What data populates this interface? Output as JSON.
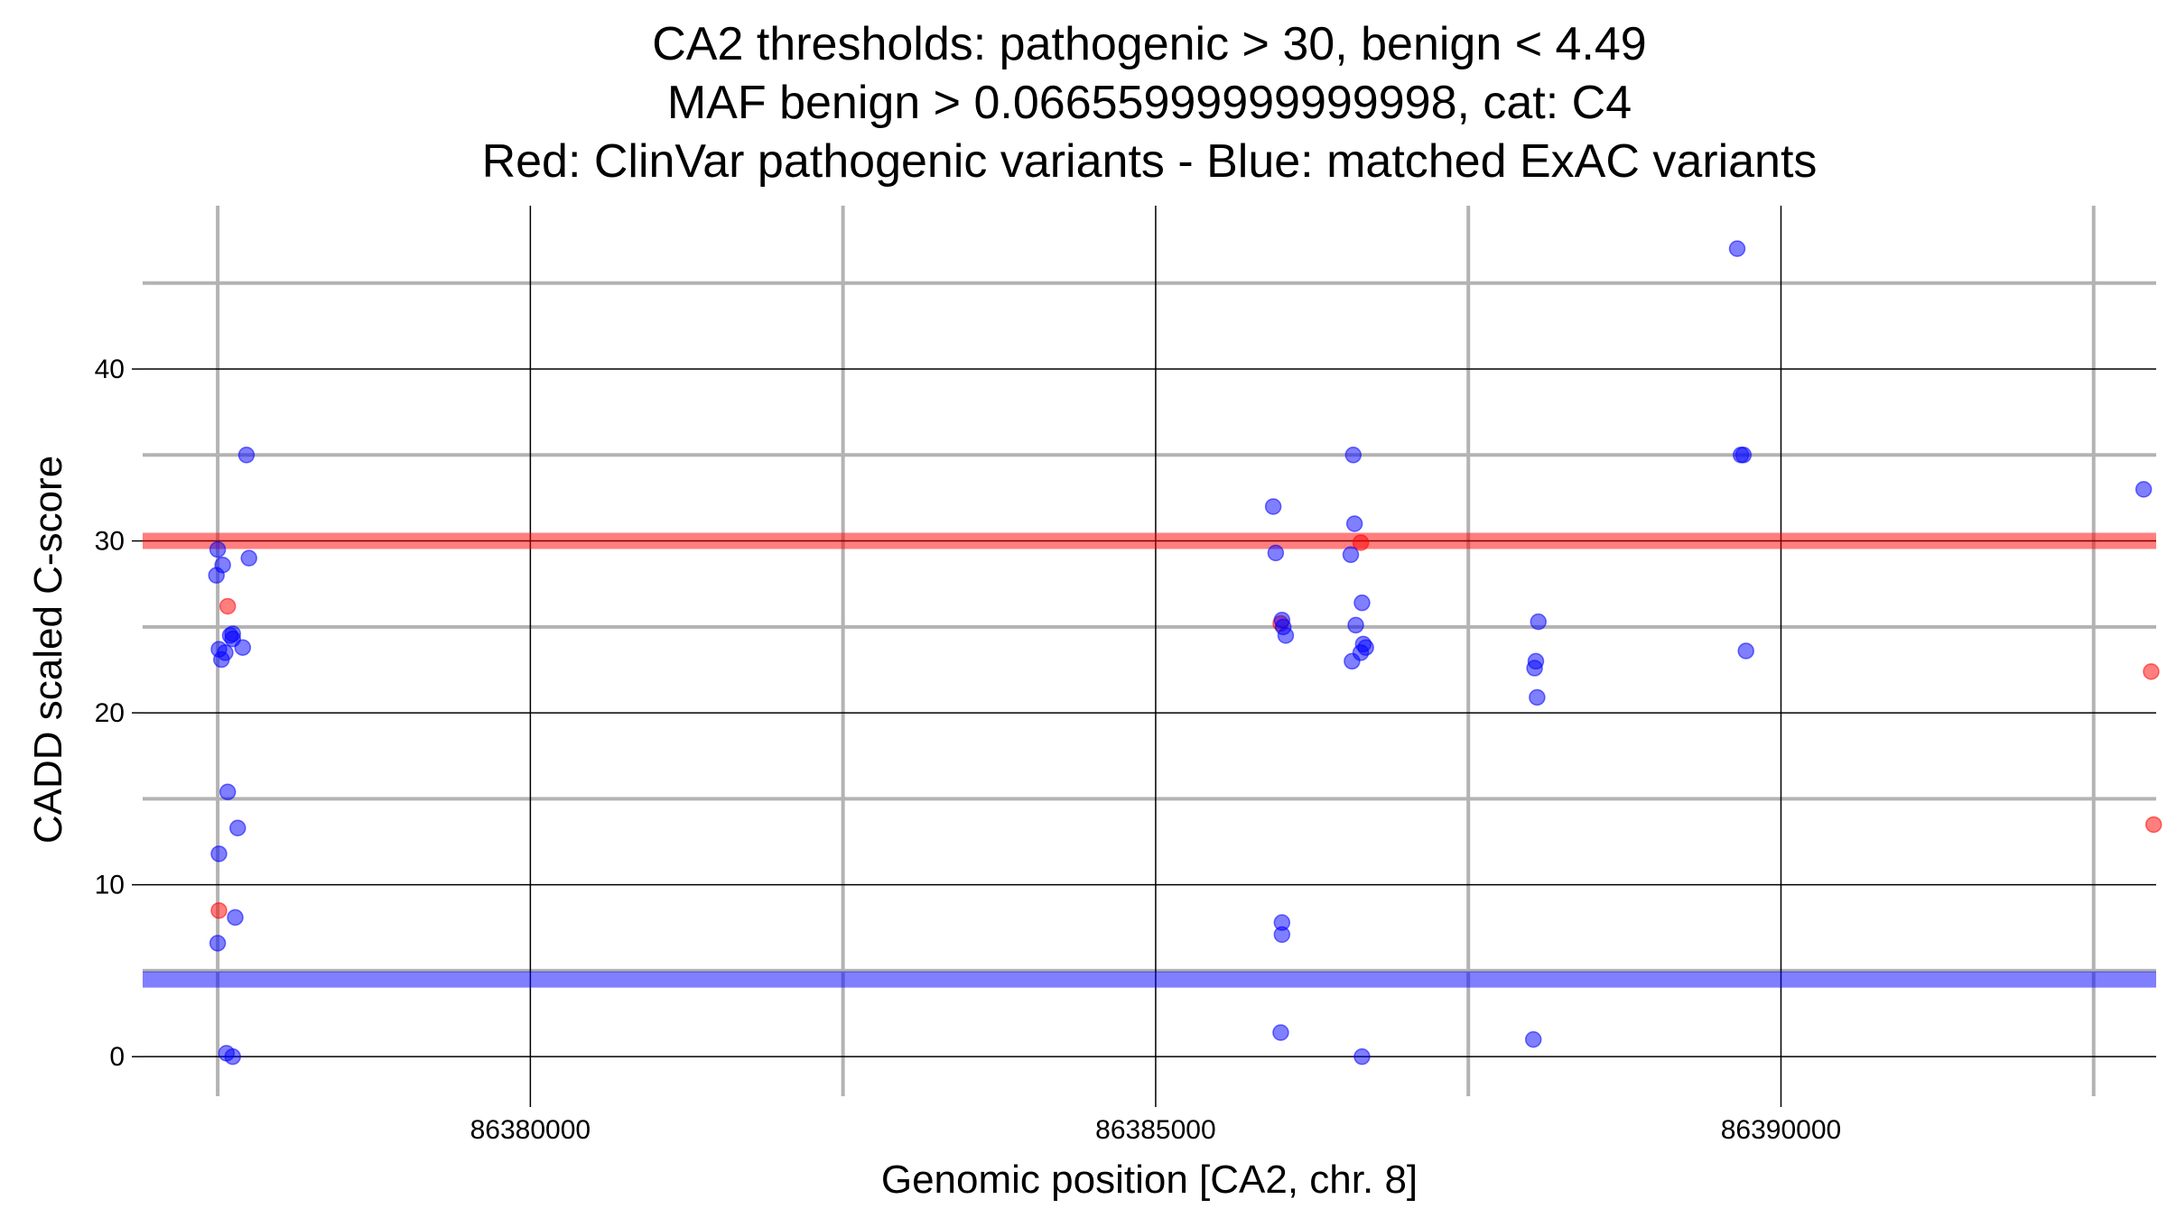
{
  "chart_data": {
    "type": "scatter",
    "title_lines": [
      "CA2 thresholds: pathogenic > 30, benign < 4.49",
      "MAF benign > 0.06655999999999998, cat: C4",
      "Red: ClinVar pathogenic variants - Blue: matched ExAC variants"
    ],
    "xlabel": "Genomic position [CA2, chr. 8]",
    "ylabel": "CADD scaled C-score",
    "xlim": [
      86376900,
      86393000
    ],
    "ylim": [
      -2.3,
      49.5
    ],
    "x_ticks": [
      86380000,
      86385000,
      86390000
    ],
    "x_tick_labels": [
      "86380000",
      "86385000",
      "86390000"
    ],
    "x_minor_grid": [
      86377500,
      86382500,
      86387500,
      86392500
    ],
    "y_ticks": [
      0,
      10,
      20,
      30,
      40
    ],
    "y_tick_labels": [
      "0",
      "10",
      "20",
      "30",
      "40"
    ],
    "y_minor_grid": [
      5,
      15,
      25,
      35,
      45
    ],
    "thresholds": [
      {
        "value": 30,
        "color": "#ff0000",
        "label": "pathogenic"
      },
      {
        "value": 4.49,
        "color": "#0000ff",
        "label": "benign"
      }
    ],
    "colors": {
      "pathogenic": "#ff0000",
      "exac": "#0000ff",
      "major_grid": "#000000",
      "minor_grid": "#b3b3b3"
    },
    "series": [
      {
        "name": "ClinVar pathogenic variants",
        "color": "#ff0000",
        "points": [
          [
            86377580,
            26.2
          ],
          [
            86377510,
            8.5
          ],
          [
            86386000,
            25.2
          ],
          [
            86386640,
            29.9
          ],
          [
            86392960,
            22.4
          ],
          [
            86392980,
            13.5
          ]
        ]
      },
      {
        "name": "matched ExAC variants",
        "color": "#0000ff",
        "points": [
          [
            86377500,
            29.5
          ],
          [
            86377490,
            28.0
          ],
          [
            86377540,
            28.6
          ],
          [
            86377730,
            35.0
          ],
          [
            86377750,
            29.0
          ],
          [
            86377620,
            24.6
          ],
          [
            86377620,
            24.3
          ],
          [
            86377600,
            24.5
          ],
          [
            86377700,
            23.8
          ],
          [
            86377510,
            23.7
          ],
          [
            86377560,
            23.5
          ],
          [
            86377530,
            23.1
          ],
          [
            86377580,
            15.4
          ],
          [
            86377660,
            13.3
          ],
          [
            86377510,
            11.8
          ],
          [
            86377640,
            8.1
          ],
          [
            86377500,
            6.6
          ],
          [
            86377570,
            0.2
          ],
          [
            86377620,
            0.0
          ],
          [
            86385940,
            32.0
          ],
          [
            86385960,
            29.3
          ],
          [
            86386010,
            25.4
          ],
          [
            86386020,
            25.0
          ],
          [
            86386040,
            24.5
          ],
          [
            86386010,
            7.8
          ],
          [
            86386010,
            7.1
          ],
          [
            86386000,
            1.4
          ],
          [
            86386580,
            35.0
          ],
          [
            86386590,
            31.0
          ],
          [
            86386560,
            29.2
          ],
          [
            86386650,
            26.4
          ],
          [
            86386600,
            25.1
          ],
          [
            86386660,
            24.0
          ],
          [
            86386680,
            23.8
          ],
          [
            86386640,
            23.5
          ],
          [
            86386570,
            23.0
          ],
          [
            86386650,
            0.0
          ],
          [
            86388060,
            25.3
          ],
          [
            86388040,
            23.0
          ],
          [
            86388030,
            22.6
          ],
          [
            86388050,
            20.9
          ],
          [
            86388020,
            1.0
          ],
          [
            86389650,
            47.0
          ],
          [
            86389680,
            35.0
          ],
          [
            86389700,
            35.0
          ],
          [
            86389720,
            23.6
          ],
          [
            86392900,
            33.0
          ]
        ]
      }
    ]
  }
}
